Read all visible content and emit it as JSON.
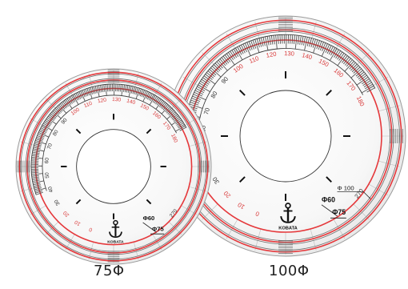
{
  "products": [
    {
      "caption": "75Φ",
      "scale_start": 0,
      "scale_end": 180,
      "scale_major_step": 10,
      "angle_label": "270",
      "hole_labels": [
        "Φ60",
        "Φ75"
      ],
      "brand": "KOBATA"
    },
    {
      "caption": "100Φ",
      "scale_start": 0,
      "scale_end": 180,
      "scale_major_step": 10,
      "angle_label": "270",
      "hole_labels": [
        "Φ60",
        "Φ75",
        "Φ 100"
      ],
      "brand": "KOBATA"
    }
  ],
  "colors": {
    "ring_red": "#e5383b",
    "scale_red": "#d93b3b",
    "band_dark": "#555555",
    "line_gray": "#6e6e6e",
    "text_dark": "#222222"
  }
}
